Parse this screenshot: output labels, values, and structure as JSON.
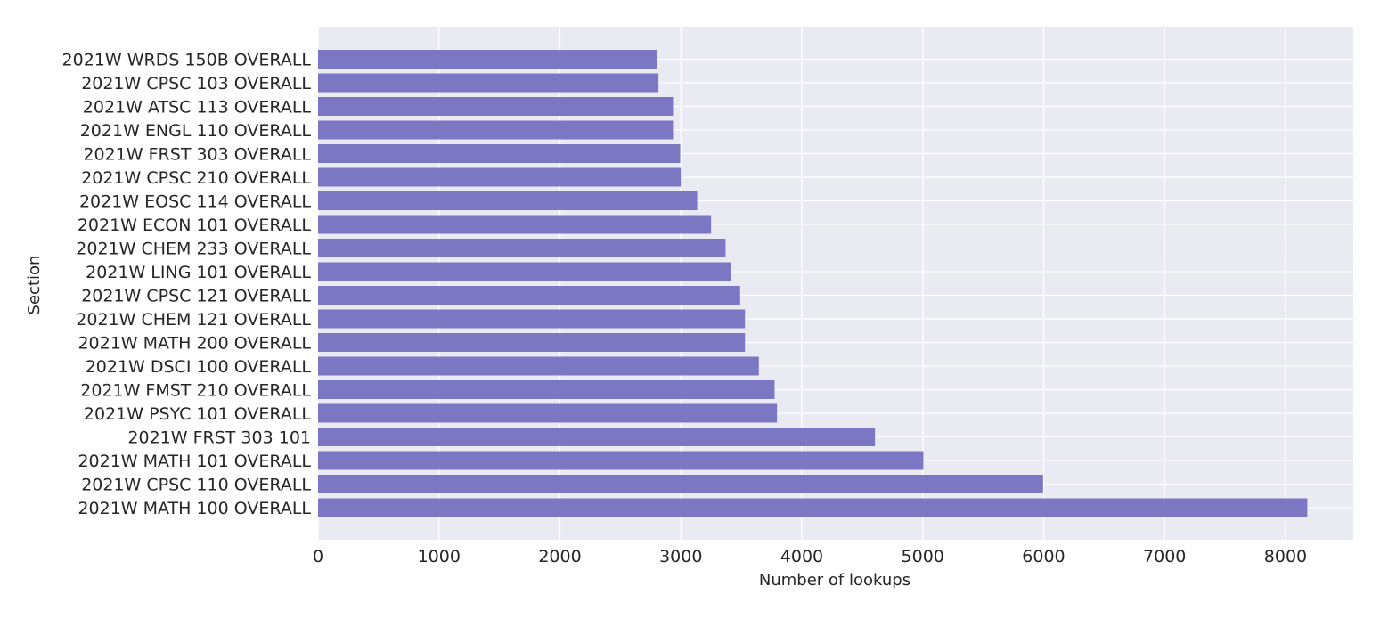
{
  "chart_data": {
    "type": "bar",
    "orientation": "horizontal",
    "title": "",
    "xlabel": "Number of lookups",
    "ylabel": "Section",
    "xlim": [
      0,
      8560
    ],
    "xticks": [
      0,
      1000,
      2000,
      3000,
      4000,
      5000,
      6000,
      7000,
      8000
    ],
    "grid": true,
    "categories": [
      "2021W WRDS 150B OVERALL",
      "2021W CPSC 103 OVERALL",
      "2021W ATSC 113 OVERALL",
      "2021W ENGL 110 OVERALL",
      "2021W FRST 303 OVERALL",
      "2021W CPSC 210 OVERALL",
      "2021W EOSC 114 OVERALL",
      "2021W ECON 101 OVERALL",
      "2021W CHEM 233 OVERALL",
      "2021W LING 101 OVERALL",
      "2021W CPSC 121 OVERALL",
      "2021W CHEM 121 OVERALL",
      "2021W MATH 200 OVERALL",
      "2021W DSCI 100 OVERALL",
      "2021W FMST 210 OVERALL",
      "2021W PSYC 101 OVERALL",
      "2021W FRST 303 101",
      "2021W MATH 101 OVERALL",
      "2021W CPSC 110 OVERALL",
      "2021W MATH 100 OVERALL"
    ],
    "values": [
      2800,
      2815,
      2935,
      2935,
      2995,
      3000,
      3135,
      3250,
      3370,
      3415,
      3490,
      3530,
      3530,
      3645,
      3775,
      3795,
      4605,
      5005,
      5995,
      8180
    ],
    "colors": {
      "bar": "#7b77c2",
      "plot_background": "#eaeaf2",
      "grid": "#ffffff",
      "text": "#262626"
    }
  }
}
